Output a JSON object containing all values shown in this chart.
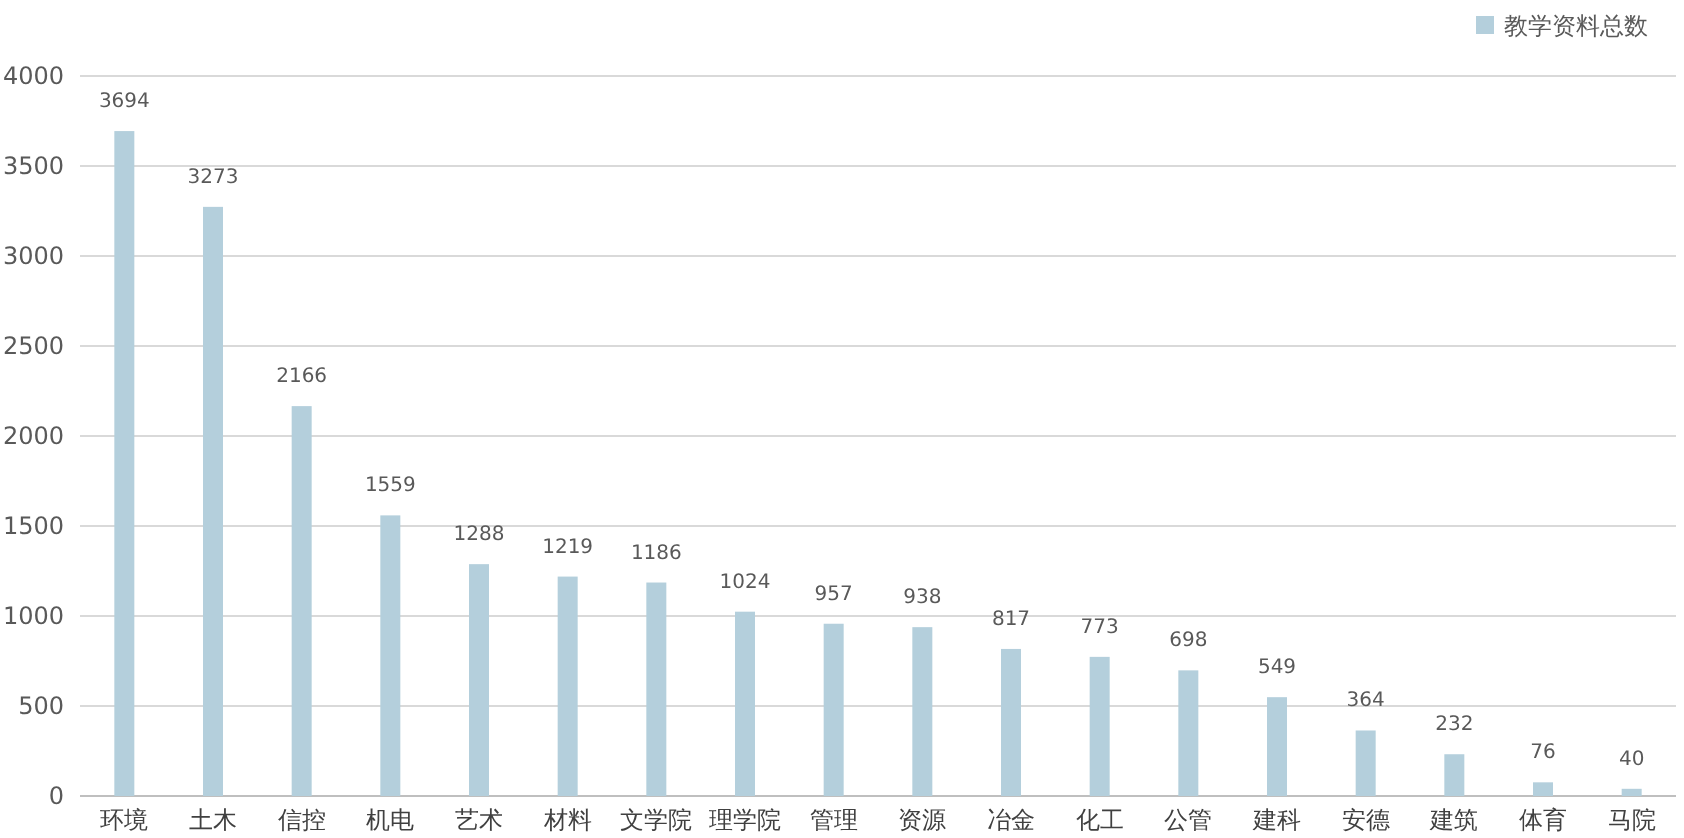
{
  "chart_data": {
    "type": "bar",
    "categories": [
      "环境",
      "土木",
      "信控",
      "机电",
      "艺术",
      "材料",
      "文学院",
      "理学院",
      "管理",
      "资源",
      "冶金",
      "化工",
      "公管",
      "建科",
      "安德",
      "建筑",
      "体育",
      "马院"
    ],
    "series": [
      {
        "name": "教学资料总数",
        "color": "#b4cfdc",
        "values": [
          3694,
          3273,
          2166,
          1559,
          1288,
          1219,
          1186,
          1024,
          957,
          938,
          817,
          773,
          698,
          549,
          364,
          232,
          76,
          40
        ]
      }
    ],
    "ylim": [
      0,
      4000
    ],
    "yticks": [
      0,
      500,
      1000,
      1500,
      2000,
      2500,
      3000,
      3500,
      4000
    ],
    "grid": "y",
    "legend": "top right",
    "data_labels": true
  }
}
